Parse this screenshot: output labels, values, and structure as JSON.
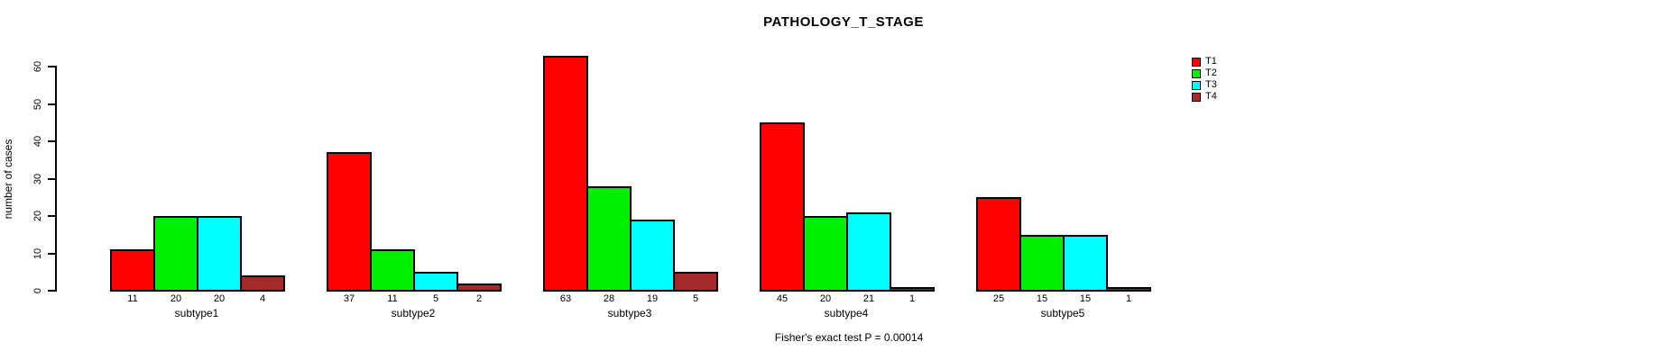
{
  "title": "PATHOLOGY_T_STAGE",
  "footer": "Fisher's exact test P = 0.00014",
  "chart_data": {
    "type": "bar",
    "grouped": true,
    "title": "PATHOLOGY_T_STAGE",
    "xlabel": "",
    "ylabel": "number of cases",
    "categories": [
      "subtype1",
      "subtype2",
      "subtype3",
      "subtype4",
      "subtype5"
    ],
    "series": [
      {
        "name": "T1",
        "color": "#FF0000",
        "values": [
          11,
          37,
          63,
          45,
          25
        ]
      },
      {
        "name": "T2",
        "color": "#00EE00",
        "values": [
          20,
          11,
          28,
          20,
          15
        ]
      },
      {
        "name": "T3",
        "color": "#00FFFF",
        "values": [
          20,
          5,
          19,
          21,
          15
        ]
      },
      {
        "name": "T4",
        "color": "#A52A2A",
        "values": [
          4,
          2,
          5,
          1,
          1
        ]
      }
    ],
    "bar_value_labels": [
      [
        11,
        20,
        20,
        4
      ],
      [
        37,
        11,
        5,
        2
      ],
      [
        63,
        28,
        19,
        5
      ],
      [
        45,
        20,
        21,
        1
      ],
      [
        25,
        15,
        15,
        1
      ]
    ],
    "yticks": [
      0,
      10,
      20,
      30,
      40,
      50,
      60
    ],
    "ylim": [
      0,
      63
    ],
    "grid": false,
    "legend_position": "right-inside",
    "annotation": "Fisher's exact test P = 0.00014"
  }
}
